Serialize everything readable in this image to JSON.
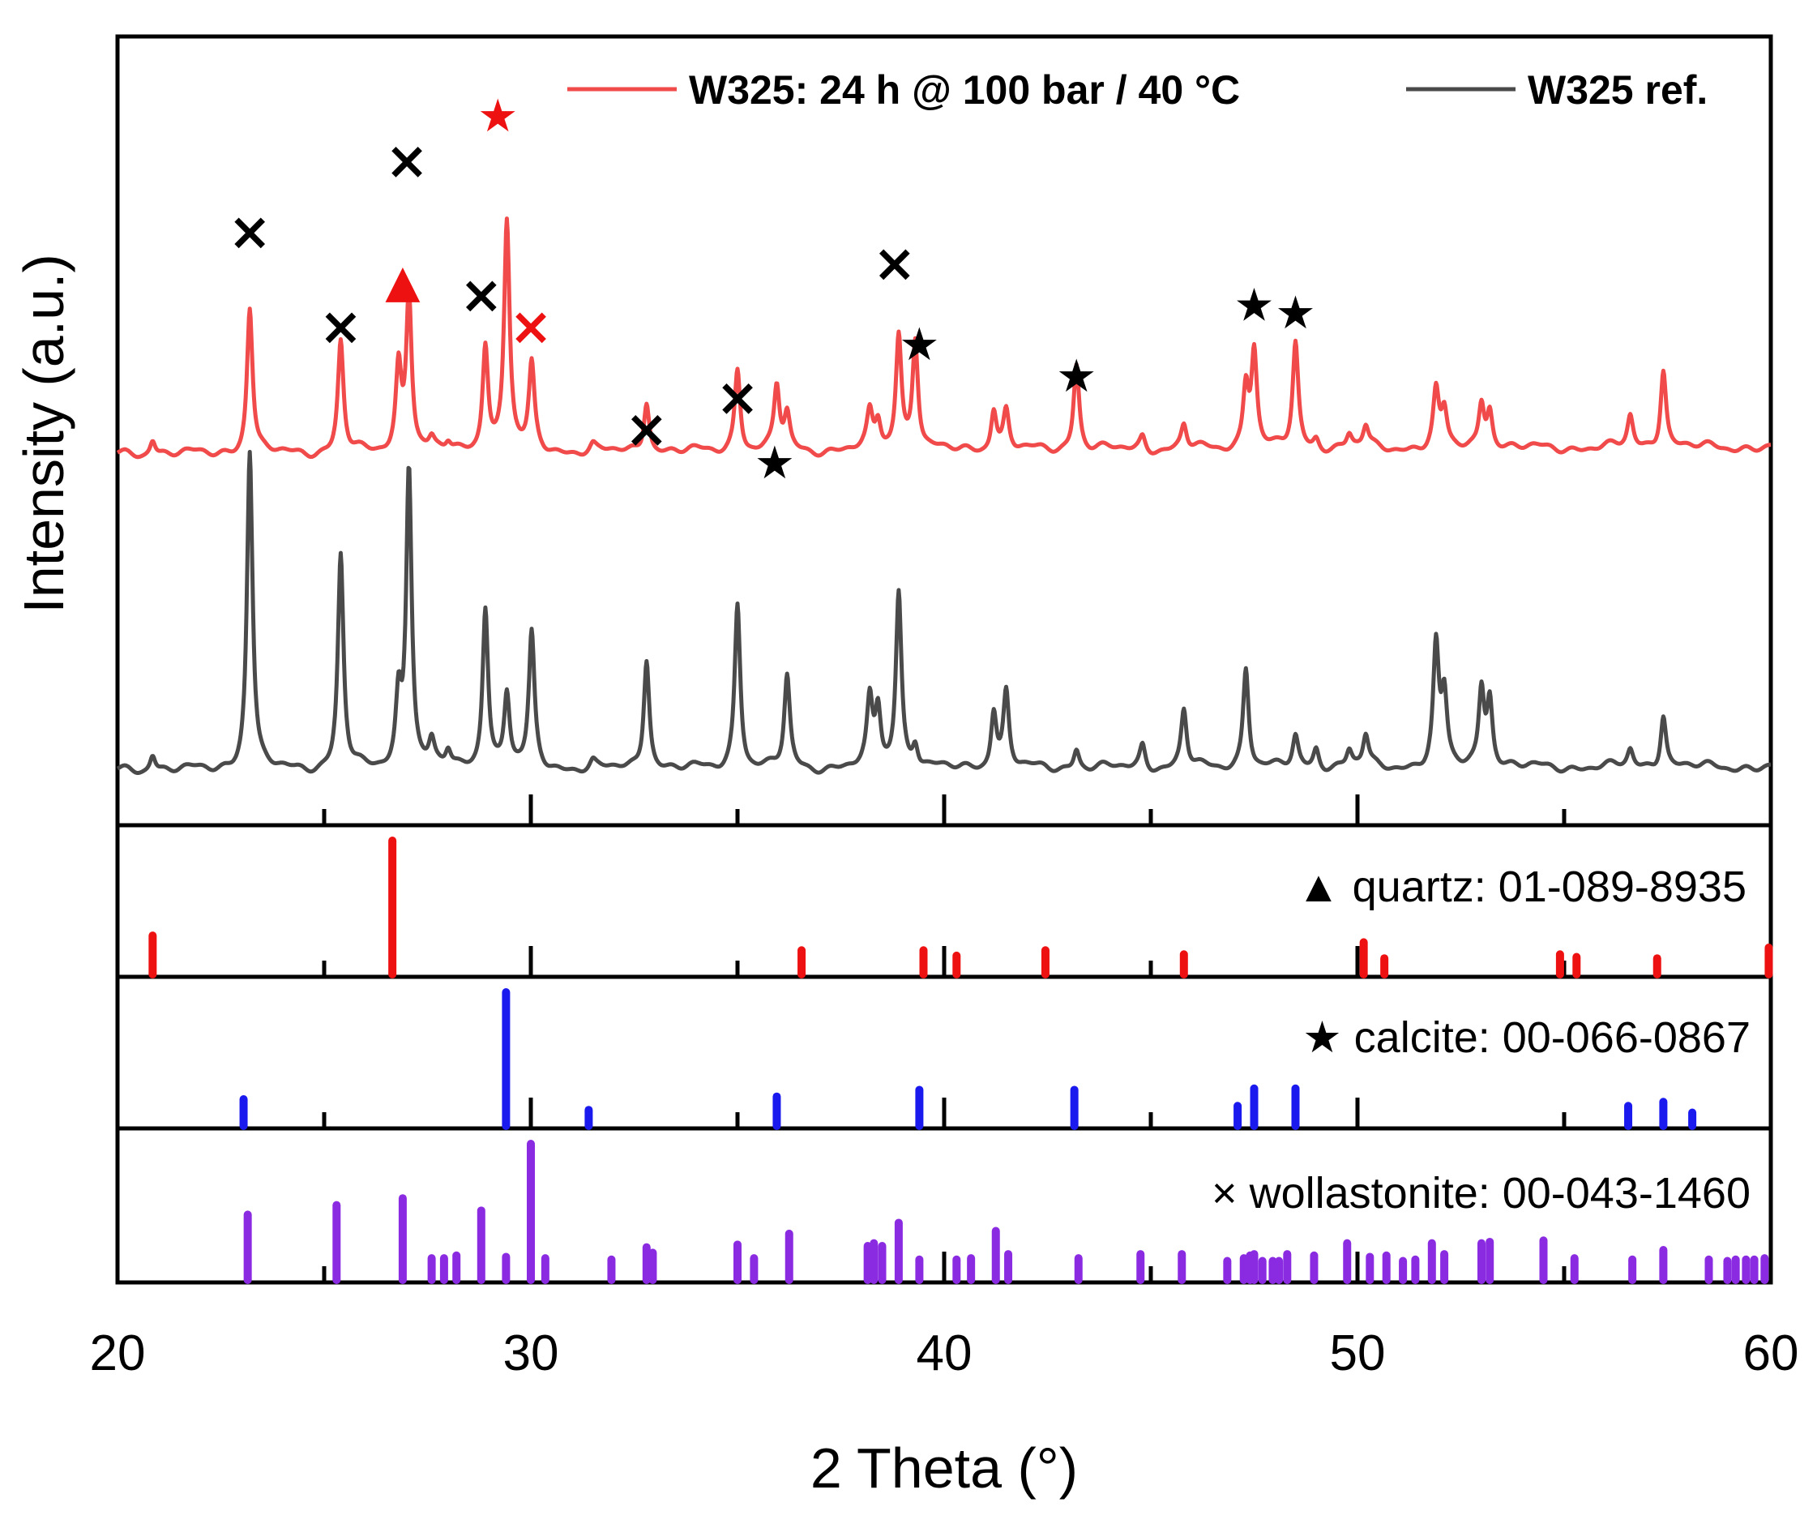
{
  "chart_data": {
    "type": "line",
    "xlabel": "2 Theta (°)",
    "ylabel": "Intensity (a.u.)",
    "xlim": [
      20,
      60
    ],
    "xticks": [
      "20",
      "30",
      "40",
      "50",
      "60"
    ],
    "legend_position": "top",
    "series": [
      {
        "name": "W325: 24 h @ 100 bar / 40 °C",
        "color": "#f04a4a",
        "peaks": [
          [
            20.85,
            0.045
          ],
          [
            23.2,
            0.42
          ],
          [
            25.4,
            0.32
          ],
          [
            26.8,
            0.24
          ],
          [
            27.05,
            0.46
          ],
          [
            27.6,
            0.03
          ],
          [
            28.0,
            0.025
          ],
          [
            28.9,
            0.31
          ],
          [
            29.42,
            0.66
          ],
          [
            30.02,
            0.24
          ],
          [
            31.5,
            0.018
          ],
          [
            32.8,
            0.15
          ],
          [
            35.0,
            0.24
          ],
          [
            35.95,
            0.18
          ],
          [
            36.2,
            0.1
          ],
          [
            38.2,
            0.1
          ],
          [
            38.4,
            0.08
          ],
          [
            38.9,
            0.33
          ],
          [
            39.3,
            0.32
          ],
          [
            41.2,
            0.12
          ],
          [
            41.5,
            0.11
          ],
          [
            43.2,
            0.25
          ],
          [
            44.8,
            0.04
          ],
          [
            45.8,
            0.07
          ],
          [
            47.3,
            0.18
          ],
          [
            47.5,
            0.28
          ],
          [
            48.5,
            0.3
          ],
          [
            49.0,
            0.03
          ],
          [
            49.8,
            0.04
          ],
          [
            50.2,
            0.06
          ],
          [
            51.9,
            0.16
          ],
          [
            52.1,
            0.1
          ],
          [
            53.0,
            0.13
          ],
          [
            53.2,
            0.11
          ],
          [
            56.6,
            0.09
          ],
          [
            57.4,
            0.23
          ]
        ]
      },
      {
        "name": "W325 ref.",
        "color": "#4a4a4a",
        "peaks": [
          [
            20.85,
            0.05
          ],
          [
            23.2,
            0.94
          ],
          [
            25.4,
            0.63
          ],
          [
            26.8,
            0.2
          ],
          [
            27.05,
            0.89
          ],
          [
            27.6,
            0.07
          ],
          [
            28.0,
            0.05
          ],
          [
            28.9,
            0.48
          ],
          [
            29.42,
            0.22
          ],
          [
            30.02,
            0.39
          ],
          [
            31.5,
            0.02
          ],
          [
            32.8,
            0.33
          ],
          [
            35.0,
            0.49
          ],
          [
            36.2,
            0.27
          ],
          [
            38.2,
            0.19
          ],
          [
            38.4,
            0.17
          ],
          [
            38.9,
            0.52
          ],
          [
            39.3,
            0.07
          ],
          [
            41.2,
            0.17
          ],
          [
            41.5,
            0.22
          ],
          [
            43.2,
            0.06
          ],
          [
            44.8,
            0.07
          ],
          [
            45.8,
            0.17
          ],
          [
            47.3,
            0.3
          ],
          [
            48.5,
            0.09
          ],
          [
            49.0,
            0.06
          ],
          [
            49.8,
            0.05
          ],
          [
            50.2,
            0.09
          ],
          [
            51.9,
            0.35
          ],
          [
            52.1,
            0.2
          ],
          [
            53.0,
            0.23
          ],
          [
            53.2,
            0.2
          ],
          [
            56.6,
            0.05
          ],
          [
            57.4,
            0.16
          ]
        ]
      }
    ],
    "peak_markers": [
      {
        "x": 23.2,
        "symbol": "×",
        "color": "#000000",
        "y": 0.73
      },
      {
        "x": 25.4,
        "symbol": "×",
        "color": "#000000",
        "y": 0.61
      },
      {
        "x": 27.0,
        "symbol": "×",
        "color": "#000000",
        "y": 0.82
      },
      {
        "x": 26.9,
        "symbol": "▲",
        "color": "#ee1111",
        "y": 0.67
      },
      {
        "x": 29.2,
        "symbol": "★",
        "color": "#ee1111",
        "y": 0.88
      },
      {
        "x": 28.8,
        "symbol": "×",
        "color": "#000000",
        "y": 0.65
      },
      {
        "x": 30.0,
        "symbol": "×",
        "color": "#ee1111",
        "y": 0.61
      },
      {
        "x": 32.8,
        "symbol": "×",
        "color": "#000000",
        "y": 0.48
      },
      {
        "x": 35.0,
        "symbol": "×",
        "color": "#000000",
        "y": 0.52
      },
      {
        "x": 35.9,
        "symbol": "★",
        "color": "#000000",
        "y": 0.44
      },
      {
        "x": 38.8,
        "symbol": "×",
        "color": "#000000",
        "y": 0.69
      },
      {
        "x": 39.4,
        "symbol": "★",
        "color": "#000000",
        "y": 0.59
      },
      {
        "x": 43.2,
        "symbol": "★",
        "color": "#000000",
        "y": 0.55
      },
      {
        "x": 47.5,
        "symbol": "★",
        "color": "#000000",
        "y": 0.64
      },
      {
        "x": 48.5,
        "symbol": "★",
        "color": "#000000",
        "y": 0.63
      }
    ],
    "reference_panels": [
      {
        "label": "▲ quartz: 01-089-8935",
        "color": "#ee1111",
        "lines": [
          [
            20.85,
            0.29
          ],
          [
            26.65,
            1.0
          ],
          [
            36.55,
            0.18
          ],
          [
            39.5,
            0.18
          ],
          [
            40.3,
            0.14
          ],
          [
            42.45,
            0.18
          ],
          [
            45.8,
            0.15
          ],
          [
            50.15,
            0.24
          ],
          [
            50.65,
            0.12
          ],
          [
            54.9,
            0.15
          ],
          [
            55.3,
            0.13
          ],
          [
            57.25,
            0.12
          ],
          [
            59.95,
            0.2
          ]
        ]
      },
      {
        "label": "★ calcite: 00-066-0867",
        "color": "#1a1aee",
        "lines": [
          [
            23.05,
            0.2
          ],
          [
            29.4,
            1.0
          ],
          [
            31.4,
            0.12
          ],
          [
            35.95,
            0.22
          ],
          [
            39.4,
            0.27
          ],
          [
            43.15,
            0.27
          ],
          [
            47.1,
            0.15
          ],
          [
            47.5,
            0.28
          ],
          [
            48.5,
            0.28
          ],
          [
            56.55,
            0.15
          ],
          [
            57.4,
            0.18
          ],
          [
            58.1,
            0.1
          ]
        ]
      },
      {
        "label": "× wollastonite: 00-043-1460",
        "color": "#8a2be2",
        "lines": [
          [
            23.15,
            0.48
          ],
          [
            25.3,
            0.55
          ],
          [
            26.9,
            0.6
          ],
          [
            27.6,
            0.16
          ],
          [
            27.9,
            0.16
          ],
          [
            28.2,
            0.18
          ],
          [
            28.8,
            0.51
          ],
          [
            29.4,
            0.17
          ],
          [
            30.0,
            1.0
          ],
          [
            30.35,
            0.16
          ],
          [
            31.95,
            0.15
          ],
          [
            32.8,
            0.24
          ],
          [
            32.95,
            0.2
          ],
          [
            35.0,
            0.26
          ],
          [
            35.4,
            0.16
          ],
          [
            36.25,
            0.34
          ],
          [
            38.15,
            0.25
          ],
          [
            38.3,
            0.27
          ],
          [
            38.5,
            0.25
          ],
          [
            38.9,
            0.42
          ],
          [
            39.4,
            0.15
          ],
          [
            40.3,
            0.15
          ],
          [
            40.65,
            0.16
          ],
          [
            41.25,
            0.36
          ],
          [
            41.55,
            0.19
          ],
          [
            43.25,
            0.16
          ],
          [
            44.75,
            0.19
          ],
          [
            45.75,
            0.19
          ],
          [
            46.85,
            0.14
          ],
          [
            47.25,
            0.16
          ],
          [
            47.4,
            0.18
          ],
          [
            47.5,
            0.19
          ],
          [
            47.7,
            0.14
          ],
          [
            47.95,
            0.14
          ],
          [
            48.1,
            0.14
          ],
          [
            48.3,
            0.19
          ],
          [
            48.95,
            0.18
          ],
          [
            49.75,
            0.27
          ],
          [
            50.3,
            0.17
          ],
          [
            50.7,
            0.18
          ],
          [
            51.1,
            0.14
          ],
          [
            51.4,
            0.15
          ],
          [
            51.8,
            0.27
          ],
          [
            52.1,
            0.19
          ],
          [
            53.0,
            0.27
          ],
          [
            53.2,
            0.28
          ],
          [
            54.5,
            0.29
          ],
          [
            55.25,
            0.16
          ],
          [
            56.65,
            0.15
          ],
          [
            57.4,
            0.22
          ],
          [
            58.5,
            0.15
          ],
          [
            58.95,
            0.14
          ],
          [
            59.15,
            0.15
          ],
          [
            59.4,
            0.15
          ],
          [
            59.6,
            0.15
          ],
          [
            59.85,
            0.16
          ]
        ]
      }
    ]
  }
}
